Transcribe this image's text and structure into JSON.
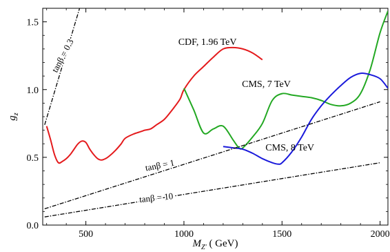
{
  "chart_data": {
    "type": "line",
    "title": "",
    "xlabel_main": "M",
    "xlabel_sub": "Z'",
    "xlabel_unit": "( GeV)",
    "ylabel_main": "g",
    "ylabel_sub": "z",
    "xlim": [
      280,
      2040
    ],
    "ylim": [
      0.0,
      1.6
    ],
    "x_ticks": [
      500,
      1000,
      1500,
      2000
    ],
    "y_ticks": [
      0.0,
      0.5,
      1.0,
      1.5
    ],
    "x_tick_labels": [
      "500",
      "1000",
      "1500",
      "2000"
    ],
    "y_tick_labels": [
      "0.0",
      "0.5",
      "1.0",
      "1.5"
    ],
    "grid": false,
    "legend": "none",
    "series": [
      {
        "color": "#e41a1c",
        "style": "solid",
        "label": "CDF, 1.96 TeV",
        "label_at": [
          1120,
          1.33
        ],
        "x": [
          300,
          320,
          340,
          360,
          380,
          400,
          420,
          440,
          460,
          480,
          500,
          520,
          540,
          560,
          580,
          600,
          620,
          650,
          680,
          700,
          740,
          780,
          800,
          830,
          860,
          900,
          940,
          980,
          1000,
          1050,
          1100,
          1150,
          1200,
          1250,
          1300,
          1350,
          1400
        ],
        "y": [
          0.73,
          0.63,
          0.52,
          0.46,
          0.47,
          0.49,
          0.52,
          0.56,
          0.6,
          0.62,
          0.61,
          0.56,
          0.52,
          0.49,
          0.48,
          0.49,
          0.51,
          0.55,
          0.6,
          0.64,
          0.67,
          0.69,
          0.7,
          0.71,
          0.74,
          0.78,
          0.85,
          0.93,
          1.0,
          1.1,
          1.17,
          1.24,
          1.3,
          1.31,
          1.3,
          1.27,
          1.22
        ]
      },
      {
        "color": "#22a822",
        "style": "solid",
        "label": "CMS,  7 TeV",
        "label_at": [
          1420,
          1.02
        ],
        "x": [
          1000,
          1050,
          1100,
          1150,
          1200,
          1250,
          1280,
          1300,
          1350,
          1400,
          1450,
          1500,
          1550,
          1600,
          1650,
          1700,
          1750,
          1800,
          1850,
          1900,
          1950,
          2000,
          2040
        ],
        "y": [
          1.01,
          0.85,
          0.68,
          0.71,
          0.73,
          0.63,
          0.57,
          0.57,
          0.65,
          0.75,
          0.92,
          0.97,
          0.96,
          0.95,
          0.94,
          0.92,
          0.89,
          0.88,
          0.9,
          0.97,
          1.15,
          1.42,
          1.58
        ]
      },
      {
        "color": "#1a1adb",
        "style": "solid",
        "label": "CMS,  8 TeV",
        "label_at": [
          1540,
          0.55
        ],
        "x": [
          1200,
          1250,
          1300,
          1350,
          1400,
          1450,
          1480,
          1500,
          1550,
          1600,
          1650,
          1700,
          1750,
          1800,
          1850,
          1900,
          1950,
          2000,
          2040
        ],
        "y": [
          0.58,
          0.57,
          0.56,
          0.53,
          0.49,
          0.46,
          0.45,
          0.46,
          0.54,
          0.65,
          0.78,
          0.88,
          0.96,
          1.03,
          1.09,
          1.12,
          1.11,
          1.08,
          1.01
        ]
      },
      {
        "color": "#000000",
        "style": "dashdot",
        "label": "tanβ  =  0.3",
        "label_at": [
          395,
          1.24
        ],
        "label_angle": -62,
        "x": [
          290,
          470
        ],
        "y": [
          0.74,
          1.61
        ]
      },
      {
        "color": "#000000",
        "style": "dashdot",
        "label": "tanβ  =  1",
        "label_at": [
          880,
          0.42
        ],
        "label_angle": -11,
        "x": [
          290,
          2000
        ],
        "y": [
          0.12,
          0.91
        ]
      },
      {
        "color": "#000000",
        "style": "dashdot",
        "label": "tanβ  =  10",
        "label_at": [
          860,
          0.18
        ],
        "label_angle": -6,
        "x": [
          290,
          2000
        ],
        "y": [
          0.06,
          0.46
        ]
      }
    ]
  }
}
